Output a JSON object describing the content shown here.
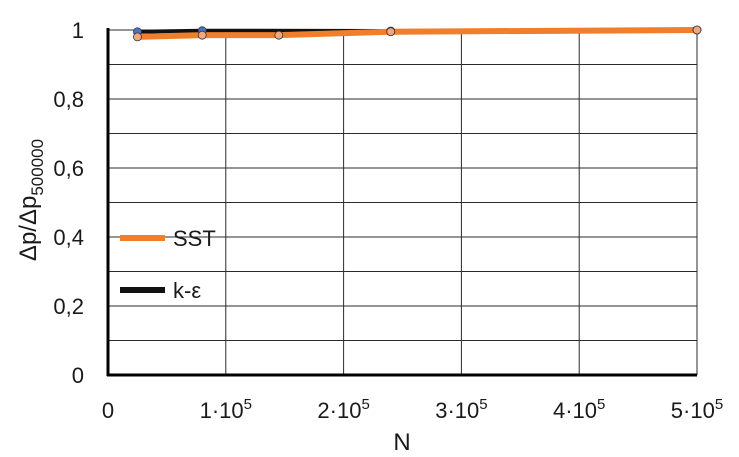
{
  "chart_data": {
    "type": "line",
    "xlabel": "N",
    "ylabel": "Δp/Δp",
    "ylabel_subscript": "500000",
    "xlim": [
      0,
      500000
    ],
    "ylim": [
      0,
      1
    ],
    "grid": true,
    "legend_position": "middle-left",
    "x_ticks": [
      {
        "value": 0,
        "base": "0",
        "exp": ""
      },
      {
        "value": 100000,
        "base": "1·10",
        "exp": "5"
      },
      {
        "value": 200000,
        "base": "2·10",
        "exp": "5"
      },
      {
        "value": 300000,
        "base": "3·10",
        "exp": "5"
      },
      {
        "value": 400000,
        "base": "4·10",
        "exp": "5"
      },
      {
        "value": 500000,
        "base": "5·10",
        "exp": "5"
      }
    ],
    "y_ticks": [
      {
        "value": 0,
        "label": "0"
      },
      {
        "value": 0.2,
        "label": "0,2"
      },
      {
        "value": 0.4,
        "label": "0,4"
      },
      {
        "value": 0.6,
        "label": "0,6"
      },
      {
        "value": 0.8,
        "label": "0,8"
      },
      {
        "value": 1,
        "label": "1"
      }
    ],
    "series": [
      {
        "name": "SST",
        "color": "#f07e2a",
        "marker_color": "#f4a582",
        "x": [
          25000,
          80000,
          145000,
          240000,
          500000
        ],
        "y": [
          0.98,
          0.985,
          0.985,
          0.995,
          1.0
        ]
      },
      {
        "name": "k-ε",
        "color": "#111111",
        "marker_color": "#4a72c4",
        "x": [
          25000,
          80000,
          240000,
          500000
        ],
        "y": [
          0.995,
          0.998,
          0.997,
          1.0
        ]
      }
    ]
  }
}
